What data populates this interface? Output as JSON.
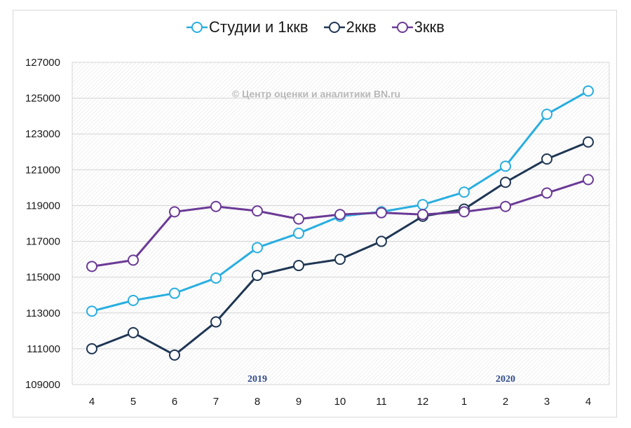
{
  "chart_data": {
    "type": "line",
    "categories": [
      "4",
      "5",
      "6",
      "7",
      "8",
      "9",
      "10",
      "11",
      "12",
      "1",
      "2",
      "3",
      "4"
    ],
    "series": [
      {
        "name": "Студии и 1ккв",
        "color": "#29aee0",
        "values": [
          113100,
          113700,
          114100,
          114950,
          116650,
          117450,
          118400,
          118650,
          119050,
          119750,
          121200,
          124100,
          125400
        ]
      },
      {
        "name": "2ккв",
        "color": "#1f3654",
        "values": [
          111000,
          111900,
          110650,
          112500,
          115100,
          115650,
          116000,
          117000,
          118400,
          118800,
          120300,
          121600,
          122550
        ]
      },
      {
        "name": "3ккв",
        "color": "#6b3a96",
        "values": [
          115600,
          115950,
          118650,
          118950,
          118700,
          118250,
          118500,
          118600,
          118500,
          118650,
          118950,
          119700,
          120450
        ]
      }
    ],
    "y_ticks": [
      "127000",
      "125000",
      "123000",
      "121000",
      "119000",
      "117000",
      "115000",
      "113000",
      "111000",
      "109000"
    ],
    "ylim": [
      109000,
      127000
    ],
    "year_labels": [
      {
        "text": "2019",
        "at_category_index": 4
      },
      {
        "text": "2020",
        "at_category_index": 10
      }
    ],
    "watermark": "© Центр оценки и аналитики BN.ru",
    "legend_position": "top-center",
    "grid": true
  }
}
